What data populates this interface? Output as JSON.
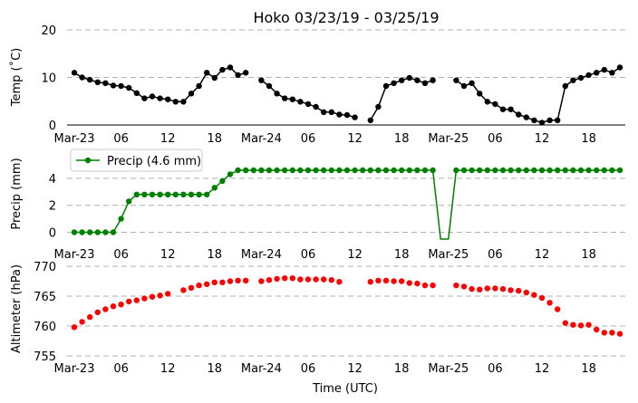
{
  "chart_data": {
    "title": "Hoko 03/23/19 - 03/25/19",
    "xlabel": "Time (UTC)",
    "x_start": "2019-03-23 00:00",
    "x_step_hours": 1,
    "x_ticks": [
      {
        "h": 0,
        "label": "Mar-23"
      },
      {
        "h": 6,
        "label": "06"
      },
      {
        "h": 12,
        "label": "12"
      },
      {
        "h": 18,
        "label": "18"
      },
      {
        "h": 24,
        "label": "Mar-24"
      },
      {
        "h": 30,
        "label": "06"
      },
      {
        "h": 36,
        "label": "12"
      },
      {
        "h": 42,
        "label": "18"
      },
      {
        "h": 48,
        "label": "Mar-25"
      },
      {
        "h": 54,
        "label": "06"
      },
      {
        "h": 60,
        "label": "12"
      },
      {
        "h": 66,
        "label": "18"
      }
    ],
    "panels": [
      {
        "type": "line",
        "ylabel": "Temp (˚C)",
        "ylim": [
          0,
          20
        ],
        "yticks": [
          0,
          10,
          20
        ],
        "color": "#000000",
        "grid": true,
        "series": [
          {
            "values": [
              11.0,
              10.0,
              9.5,
              9.0,
              8.8,
              8.3,
              8.2,
              7.8,
              6.7,
              5.6,
              6.0,
              5.6,
              5.4,
              4.9,
              4.9,
              6.6,
              8.2,
              11.0,
              9.9,
              11.6,
              12.1,
              10.5,
              11.0,
              null,
              9.4,
              8.2,
              6.6,
              5.6,
              5.4,
              4.9,
              4.4,
              3.8,
              2.7,
              2.7,
              2.2,
              2.1,
              1.6,
              null,
              1.0,
              3.8,
              8.2,
              8.8,
              9.4,
              9.9,
              9.4,
              8.8,
              9.4,
              null,
              null,
              9.4,
              8.2,
              8.8,
              6.6,
              4.9,
              4.4,
              3.3,
              3.3,
              2.2,
              1.6,
              1.0,
              0.5,
              1.0,
              1.0,
              8.2,
              9.4,
              9.9,
              10.5,
              11.0,
              11.6,
              11.0,
              12.1
            ]
          }
        ]
      },
      {
        "type": "line",
        "ylabel": "Precip (mm)",
        "ylim": [
          -0.5,
          5
        ],
        "yticks": [
          0,
          2,
          4
        ],
        "color": "#008000",
        "grid": true,
        "legend": "top-left",
        "series": [
          {
            "name": "Precip (4.6 mm)",
            "values": [
              0,
              0,
              0,
              0,
              0,
              0,
              1.0,
              2.3,
              2.8,
              2.8,
              2.8,
              2.8,
              2.8,
              2.8,
              2.8,
              2.8,
              2.8,
              2.8,
              3.3,
              3.8,
              4.3,
              4.6,
              4.6,
              4.6,
              4.6,
              4.6,
              4.6,
              4.6,
              4.6,
              4.6,
              4.6,
              4.6,
              4.6,
              4.6,
              4.6,
              4.6,
              4.6,
              4.6,
              4.6,
              4.6,
              4.6,
              4.6,
              4.6,
              4.6,
              4.6,
              4.6,
              4.6,
              -0.5,
              -0.5,
              4.6,
              4.6,
              4.6,
              4.6,
              4.6,
              4.6,
              4.6,
              4.6,
              4.6,
              4.6,
              4.6,
              4.6,
              4.6,
              4.6,
              4.6,
              4.6,
              4.6,
              4.6,
              4.6,
              4.6,
              4.6,
              4.6
            ]
          }
        ]
      },
      {
        "type": "scatter",
        "ylabel": "Altimeter (hPa)",
        "ylim": [
          755,
          770
        ],
        "yticks": [
          755,
          760,
          765,
          770
        ],
        "color": "#ff0000",
        "grid": true,
        "series": [
          {
            "values": [
              759.8,
              760.7,
              761.5,
              762.3,
              762.8,
              763.3,
              763.6,
              764.1,
              764.3,
              764.6,
              764.9,
              765.1,
              765.4,
              null,
              766.0,
              766.4,
              766.8,
              767.0,
              767.3,
              767.3,
              767.5,
              767.6,
              767.6,
              null,
              767.5,
              767.7,
              767.9,
              768.0,
              768.0,
              767.8,
              767.8,
              767.8,
              767.8,
              767.7,
              767.4,
              null,
              null,
              null,
              767.4,
              767.6,
              767.6,
              767.5,
              767.5,
              767.2,
              767.1,
              766.8,
              766.8,
              null,
              null,
              766.8,
              766.6,
              766.2,
              766.1,
              766.3,
              766.3,
              766.2,
              766.0,
              765.9,
              765.6,
              765.2,
              764.7,
              763.9,
              762.8,
              760.5,
              760.2,
              760.1,
              760.2,
              759.4,
              758.9,
              758.9,
              758.7
            ]
          }
        ]
      }
    ]
  }
}
